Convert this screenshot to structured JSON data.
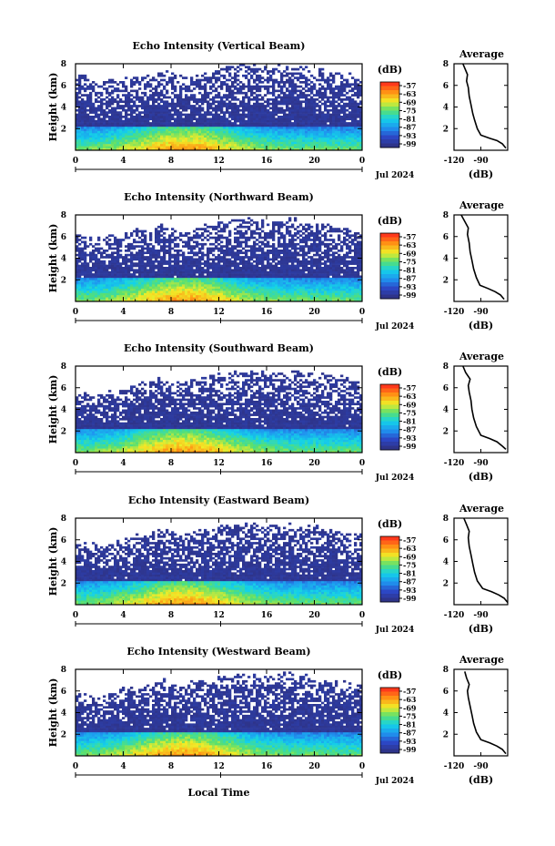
{
  "chart_data": [
    {
      "type": "heatmap",
      "title": "Echo Intensity (Vertical Beam)",
      "ylabel": "Height (km)",
      "xlim": [
        0,
        24
      ],
      "ylim": [
        0,
        8
      ],
      "x_ticks": [
        "0",
        "4",
        "8",
        "12",
        "16",
        "20",
        "0"
      ],
      "y_ticks": [
        "2",
        "4",
        "6",
        "8"
      ],
      "date_label": "Jul 2024",
      "colorbar": {
        "unit": "(dB)",
        "ticks": [
          "-57",
          "-63",
          "-69",
          "-75",
          "-81",
          "-87",
          "-93",
          "-99"
        ]
      },
      "top_profile": [
        7.1,
        6.6,
        6.3,
        6.6,
        6.5,
        7.0,
        6.9,
        7.3,
        7.2,
        6.8,
        7.0,
        7.2,
        7.6,
        7.9,
        8.0,
        7.8,
        7.6,
        7.7,
        7.8,
        7.6,
        7.5,
        7.4,
        7.2,
        6.9,
        6.6
      ],
      "average": {
        "title": "Average",
        "xlabel": "(dB)",
        "xlim": [
          -120,
          -60
        ],
        "ylim": [
          0,
          8
        ],
        "x_ticks": [
          "-120",
          "-90"
        ],
        "y_ticks": [
          "2",
          "4",
          "6",
          "8"
        ],
        "profile": [
          [
            -62,
            0.2
          ],
          [
            -66,
            0.6
          ],
          [
            -72,
            0.9
          ],
          [
            -80,
            1.1
          ],
          [
            -90,
            1.4
          ],
          [
            -94,
            2.0
          ],
          [
            -97,
            2.8
          ],
          [
            -99,
            3.4
          ],
          [
            -101,
            4.2
          ],
          [
            -103,
            5.0
          ],
          [
            -104,
            5.8
          ],
          [
            -106,
            6.4
          ],
          [
            -105,
            7.0
          ],
          [
            -108,
            7.6
          ],
          [
            -110,
            8.0
          ]
        ]
      }
    },
    {
      "type": "heatmap",
      "title": "Echo Intensity (Northward Beam)",
      "ylabel": "Height (km)",
      "xlim": [
        0,
        24
      ],
      "ylim": [
        0,
        8
      ],
      "x_ticks": [
        "0",
        "4",
        "8",
        "12",
        "16",
        "20",
        "0"
      ],
      "y_ticks": [
        "2",
        "4",
        "6",
        "8"
      ],
      "date_label": "Jul 2024",
      "colorbar": {
        "unit": "(dB)",
        "ticks": [
          "-57",
          "-63",
          "-69",
          "-75",
          "-81",
          "-87",
          "-93",
          "-99"
        ]
      },
      "top_profile": [
        6.4,
        6.0,
        5.8,
        6.2,
        6.1,
        6.6,
        6.5,
        7.0,
        6.8,
        6.4,
        6.9,
        7.1,
        7.3,
        7.6,
        7.8,
        7.6,
        7.3,
        7.5,
        7.7,
        7.4,
        7.3,
        7.1,
        6.8,
        6.6,
        6.4
      ],
      "average": {
        "title": "Average",
        "xlabel": "(dB)",
        "xlim": [
          -120,
          -60
        ],
        "ylim": [
          0,
          8
        ],
        "x_ticks": [
          "-120",
          "-90"
        ],
        "y_ticks": [
          "2",
          "4",
          "6",
          "8"
        ],
        "profile": [
          [
            -64,
            0.2
          ],
          [
            -68,
            0.6
          ],
          [
            -74,
            0.9
          ],
          [
            -82,
            1.2
          ],
          [
            -91,
            1.5
          ],
          [
            -95,
            2.2
          ],
          [
            -98,
            3.0
          ],
          [
            -100,
            3.8
          ],
          [
            -102,
            4.6
          ],
          [
            -103,
            5.4
          ],
          [
            -105,
            6.2
          ],
          [
            -104,
            6.8
          ],
          [
            -108,
            7.4
          ],
          [
            -112,
            8.0
          ]
        ]
      }
    },
    {
      "type": "heatmap",
      "title": "Echo Intensity (Southward Beam)",
      "ylabel": "Height (km)",
      "xlim": [
        0,
        24
      ],
      "ylim": [
        0,
        8
      ],
      "x_ticks": [
        "0",
        "4",
        "8",
        "12",
        "16",
        "20",
        "0"
      ],
      "y_ticks": [
        "2",
        "4",
        "6",
        "8"
      ],
      "date_label": "Jul 2024",
      "colorbar": {
        "unit": "(dB)",
        "ticks": [
          "-57",
          "-63",
          "-69",
          "-75",
          "-81",
          "-87",
          "-93",
          "-99"
        ]
      },
      "top_profile": [
        5.6,
        5.4,
        5.2,
        5.8,
        5.9,
        6.3,
        6.6,
        6.8,
        6.7,
        6.5,
        6.8,
        7.0,
        7.2,
        7.4,
        7.6,
        7.4,
        7.2,
        7.4,
        7.6,
        7.4,
        7.3,
        7.2,
        7.0,
        6.9,
        6.8
      ],
      "average": {
        "title": "Average",
        "xlabel": "(dB)",
        "xlim": [
          -120,
          -60
        ],
        "ylim": [
          0,
          8
        ],
        "x_ticks": [
          "-120",
          "-90"
        ],
        "y_ticks": [
          "2",
          "4",
          "6",
          "8"
        ],
        "profile": [
          [
            -62,
            0.3
          ],
          [
            -66,
            0.6
          ],
          [
            -72,
            1.0
          ],
          [
            -80,
            1.3
          ],
          [
            -90,
            1.6
          ],
          [
            -95,
            2.4
          ],
          [
            -98,
            3.2
          ],
          [
            -100,
            4.0
          ],
          [
            -101,
            4.8
          ],
          [
            -103,
            5.6
          ],
          [
            -104,
            6.2
          ],
          [
            -102,
            6.8
          ],
          [
            -107,
            7.4
          ],
          [
            -110,
            8.0
          ]
        ]
      }
    },
    {
      "type": "heatmap",
      "title": "Echo Intensity (Eastward Beam)",
      "ylabel": "Height (km)",
      "xlim": [
        0,
        24
      ],
      "ylim": [
        0,
        8
      ],
      "x_ticks": [
        "0",
        "4",
        "8",
        "12",
        "16",
        "20",
        "0"
      ],
      "y_ticks": [
        "2",
        "4",
        "6",
        "8"
      ],
      "date_label": "Jul 2024",
      "colorbar": {
        "unit": "(dB)",
        "ticks": [
          "-57",
          "-63",
          "-69",
          "-75",
          "-81",
          "-87",
          "-93",
          "-99"
        ]
      },
      "top_profile": [
        5.8,
        5.5,
        5.4,
        5.9,
        6.0,
        6.4,
        6.6,
        7.0,
        6.8,
        6.5,
        6.8,
        7.1,
        7.3,
        7.5,
        7.7,
        7.5,
        7.2,
        7.4,
        7.6,
        7.3,
        7.2,
        7.0,
        6.8,
        6.6,
        6.4
      ],
      "average": {
        "title": "Average",
        "xlabel": "(dB)",
        "xlim": [
          -120,
          -60
        ],
        "ylim": [
          0,
          8
        ],
        "x_ticks": [
          "-120",
          "-90"
        ],
        "y_ticks": [
          "2",
          "4",
          "6",
          "8"
        ],
        "profile": [
          [
            -60,
            0.2
          ],
          [
            -64,
            0.6
          ],
          [
            -70,
            0.9
          ],
          [
            -78,
            1.2
          ],
          [
            -88,
            1.5
          ],
          [
            -94,
            2.2
          ],
          [
            -97,
            3.0
          ],
          [
            -99,
            3.8
          ],
          [
            -101,
            4.6
          ],
          [
            -103,
            5.4
          ],
          [
            -104,
            6.2
          ],
          [
            -103,
            6.8
          ],
          [
            -106,
            7.4
          ],
          [
            -109,
            8.0
          ]
        ]
      }
    },
    {
      "type": "heatmap",
      "title": "Echo Intensity (Westward Beam)",
      "ylabel": "Height (km)",
      "xlim": [
        0,
        24
      ],
      "ylim": [
        0,
        8
      ],
      "x_ticks": [
        "0",
        "4",
        "8",
        "12",
        "16",
        "20",
        "0"
      ],
      "y_ticks": [
        "2",
        "4",
        "6",
        "8"
      ],
      "date_label": "Jul 2024",
      "xlabel": "Local Time",
      "colorbar": {
        "unit": "(dB)",
        "ticks": [
          "-57",
          "-63",
          "-69",
          "-75",
          "-81",
          "-87",
          "-93",
          "-99"
        ]
      },
      "top_profile": [
        5.9,
        5.6,
        5.5,
        6.0,
        6.1,
        6.5,
        6.6,
        7.0,
        6.9,
        6.6,
        6.9,
        7.1,
        7.3,
        7.5,
        7.7,
        7.5,
        7.3,
        7.5,
        7.7,
        7.4,
        7.2,
        7.0,
        6.8,
        6.6,
        6.5
      ],
      "average": {
        "title": "Average",
        "xlabel": "(dB)",
        "xlim": [
          -120,
          -60
        ],
        "ylim": [
          0,
          8
        ],
        "x_ticks": [
          "-120",
          "-90"
        ],
        "y_ticks": [
          "2",
          "4",
          "6",
          "8"
        ],
        "profile": [
          [
            -62,
            0.2
          ],
          [
            -66,
            0.6
          ],
          [
            -72,
            0.9
          ],
          [
            -80,
            1.2
          ],
          [
            -90,
            1.5
          ],
          [
            -95,
            2.2
          ],
          [
            -98,
            3.0
          ],
          [
            -100,
            3.8
          ],
          [
            -102,
            4.6
          ],
          [
            -104,
            5.4
          ],
          [
            -105,
            6.0
          ],
          [
            -103,
            6.6
          ],
          [
            -106,
            7.2
          ],
          [
            -108,
            7.8
          ]
        ]
      }
    }
  ]
}
